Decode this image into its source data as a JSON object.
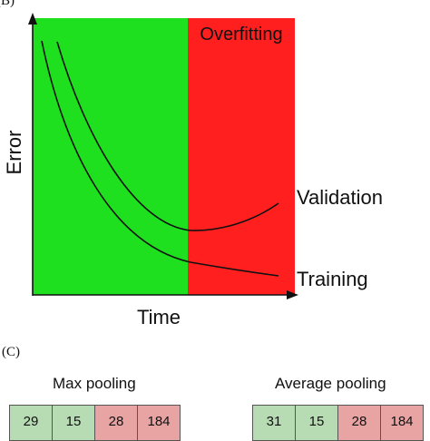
{
  "panel_b": {
    "label": "(B)",
    "regions": {
      "good_color": "#1fe01f",
      "overfit_color": "#ff1f1f",
      "overfit_label": "Overfitting"
    },
    "axes": {
      "xlabel": "Time",
      "ylabel": "Error"
    },
    "curves": [
      {
        "name": "Validation",
        "color": "#111111",
        "shape": "decreasing then rising"
      },
      {
        "name": "Training",
        "color": "#111111",
        "shape": "monotonically decreasing"
      }
    ]
  },
  "panel_c": {
    "label": "(C)",
    "max_pooling": {
      "title": "Max pooling",
      "cells": [
        "29",
        "15",
        "28",
        "184"
      ]
    },
    "average_pooling": {
      "title": "Average pooling",
      "cells": [
        "31",
        "15",
        "28",
        "184"
      ]
    }
  }
}
